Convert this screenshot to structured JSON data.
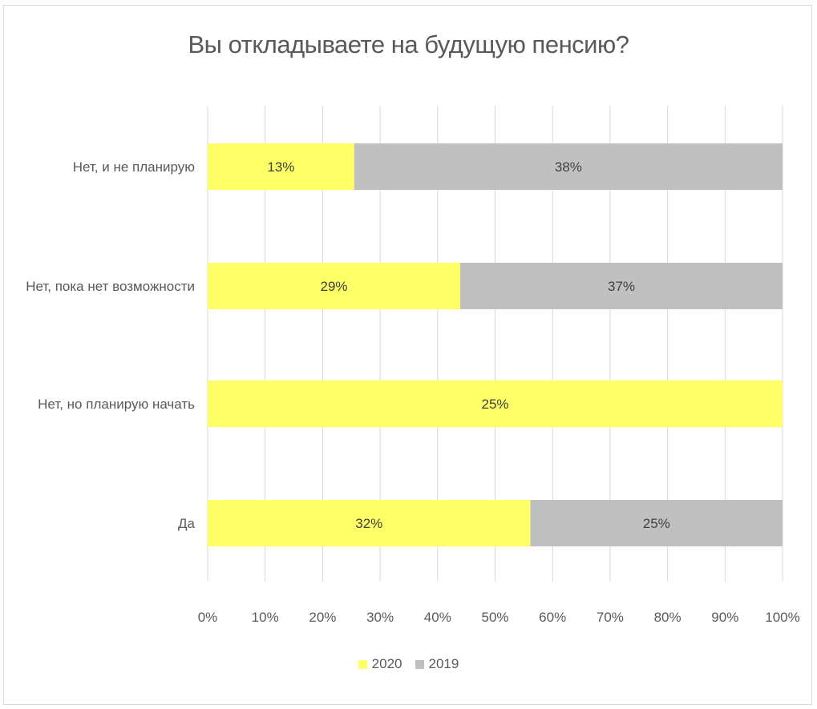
{
  "chart_data": {
    "type": "bar",
    "orientation": "horizontal",
    "stacked": "percent",
    "title": "Вы откладываете на будущую пенсию?",
    "categories": [
      "Нет, и не планирую",
      "Нет, пока нет возможности",
      "Нет, но планирую начать",
      "Да"
    ],
    "series": [
      {
        "name": "2020",
        "color": "#ffff66",
        "values": [
          13,
          29,
          25,
          32
        ],
        "labels": [
          "13%",
          "29%",
          "25%",
          "32%"
        ]
      },
      {
        "name": "2019",
        "color": "#c0c0c0",
        "values": [
          38,
          37,
          0,
          25
        ],
        "labels": [
          "38%",
          "37%",
          "",
          "25%"
        ]
      }
    ],
    "xticks": [
      "0%",
      "10%",
      "20%",
      "30%",
      "40%",
      "50%",
      "60%",
      "70%",
      "80%",
      "90%",
      "100%"
    ],
    "xlim": [
      0,
      100
    ],
    "grid": true,
    "legend": "bottom-center"
  }
}
